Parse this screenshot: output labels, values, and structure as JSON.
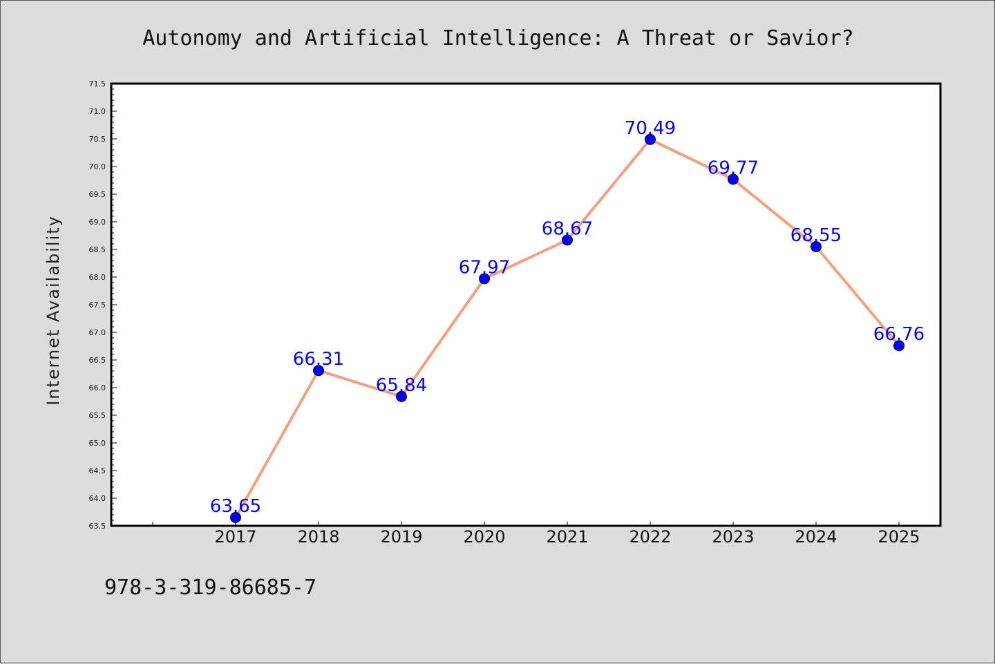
{
  "footnote": "978-3-319-86685-7",
  "chart_data": {
    "type": "line",
    "title": "Autonomy and Artificial Intelligence: A Threat or Savior?",
    "xlabel": "",
    "ylabel": "Internet Availability",
    "x": [
      "2017",
      "2018",
      "2019",
      "2020",
      "2021",
      "2022",
      "2023",
      "2024",
      "2025"
    ],
    "series": [
      {
        "values": [
          63.65,
          66.31,
          65.84,
          67.97,
          68.67,
          70.49,
          69.77,
          68.55,
          66.76
        ],
        "labels": [
          "63.65",
          "66.31",
          "65.84",
          "67.97",
          "68.67",
          "70.49",
          "69.77",
          "68.55",
          "66.76"
        ]
      }
    ],
    "ylim": [
      63.5,
      71.5
    ],
    "yticks": [
      "63.5",
      "64.0",
      "64.5",
      "65.0",
      "65.5",
      "66.0",
      "66.5",
      "67.0",
      "67.5",
      "68.0",
      "68.5",
      "69.0",
      "69.5",
      "70.0",
      "70.5",
      "71.0",
      "71.5"
    ],
    "grid": false,
    "colors": {
      "line": "#f4a07e",
      "marker": "#0000ff",
      "labels": "#0000ff",
      "plot_background": "#ffffff",
      "figure_background": "#dcdcdc"
    }
  }
}
